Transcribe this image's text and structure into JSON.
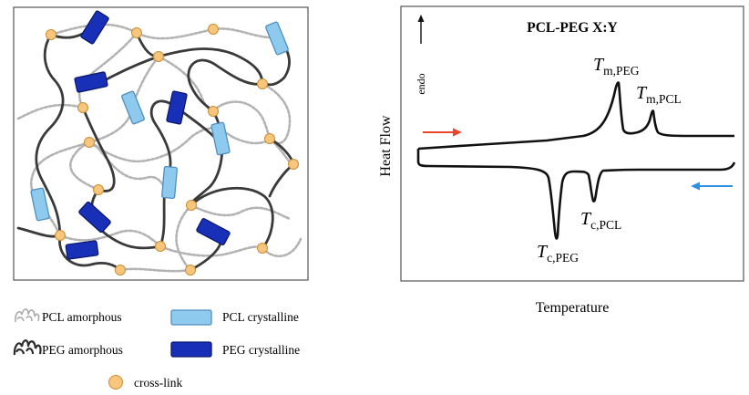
{
  "legend": {
    "pcl_amorphous": "PCL amorphous",
    "peg_amorphous": "PEG amorphous",
    "pcl_crystalline": "PCL crystalline",
    "peg_crystalline": "PEG crystalline",
    "cross_link": "cross-link"
  },
  "dsc": {
    "title": "PCL-PEG X:Y",
    "endo_label": "endo",
    "y_axis_label": "Heat Flow",
    "x_axis_label": "Temperature",
    "peaks": {
      "tm_peg": {
        "main": "T",
        "sub": "m,PEG"
      },
      "tm_pcl": {
        "main": "T",
        "sub": "m,PCL"
      },
      "tc_peg": {
        "main": "T",
        "sub": "c,PEG"
      },
      "tc_pcl": {
        "main": "T",
        "sub": "c,PCL"
      }
    },
    "heating_arrow_color": "#e8452c",
    "cooling_arrow_color": "#2f8fe0"
  },
  "colors": {
    "pcl_chain": "#b3b3b3",
    "peg_chain": "#3a3a3a",
    "pcl_crystal_fill": "#8ec9ee",
    "pcl_crystal_stroke": "#4f8fbf",
    "peg_crystal_fill": "#1830b8",
    "peg_crystal_stroke": "#0b1a6e",
    "crosslink_fill": "#f7c57b",
    "crosslink_stroke": "#c88f35"
  }
}
